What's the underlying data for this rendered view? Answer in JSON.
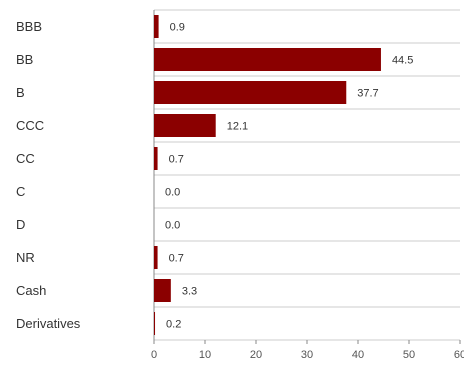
{
  "chart_data": {
    "type": "bar",
    "orientation": "horizontal",
    "categories": [
      "BBB",
      "BB",
      "B",
      "CCC",
      "CC",
      "C",
      "D",
      "NR",
      "Cash",
      "Derivatives"
    ],
    "values": [
      0.9,
      44.5,
      37.7,
      12.1,
      0.7,
      0.0,
      0.0,
      0.7,
      3.3,
      0.2
    ],
    "value_labels": [
      "0.9",
      "44.5",
      "37.7",
      "12.1",
      "0.7",
      "0.0",
      "0.0",
      "0.7",
      "3.3",
      "0.2"
    ],
    "xlim": [
      0,
      60
    ],
    "xticks": [
      0,
      10,
      20,
      30,
      40,
      50,
      60
    ],
    "xtick_labels": [
      "0",
      "10",
      "20",
      "30",
      "40",
      "50",
      "60"
    ],
    "title": "",
    "xlabel": "",
    "ylabel": "",
    "grid": true,
    "legend": "none",
    "bar_color": "#8b0000"
  }
}
